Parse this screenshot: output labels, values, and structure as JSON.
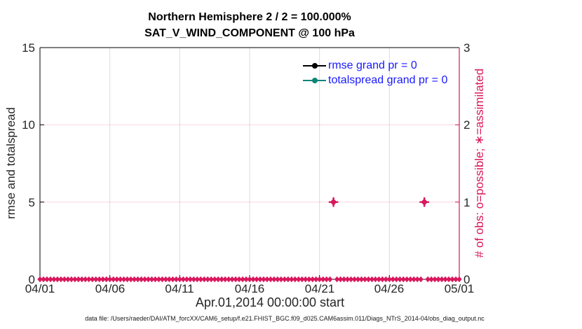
{
  "titles": {
    "line1": "Northern Hemisphere 2 / 2 = 100.000%",
    "line2": "SAT_V_WIND_COMPONENT @ 100 hPa"
  },
  "axes": {
    "x": {
      "label": "Apr.01,2014 00:00:00 start",
      "tick_labels": [
        "04/01",
        "04/06",
        "04/11",
        "04/16",
        "04/21",
        "04/26",
        "05/01"
      ]
    },
    "y_left": {
      "label": "rmse and totalspread",
      "tick_labels": [
        "0",
        "5",
        "10",
        "15"
      ],
      "color": "#262626"
    },
    "y_right": {
      "label": "# of obs: o=possible; ∗=assimilated",
      "tick_labels": [
        "0",
        "1",
        "2",
        "3"
      ],
      "color": "#d9175c"
    }
  },
  "legend": {
    "text_color": "#1a1aff",
    "items": [
      {
        "label": "rmse grand pr = 0",
        "color": "#000000"
      },
      {
        "label": "totalspread grand pr = 0",
        "color": "#0e8577"
      }
    ]
  },
  "caption": "data file: /Users/raeder/DAI/ATM_forcXX/CAM6_setup/f.e21.FHIST_BGC.f09_d025.CAM6assim.011/Diags_NTrS_2014-04/obs_diag_output.nc",
  "chart_data": {
    "type": "scatter",
    "title": "Northern Hemisphere 2 / 2 = 100.000%",
    "subtitle": "SAT_V_WIND_COMPONENT @ 100 hPa",
    "xlabel": "Apr.01,2014 00:00:00 start",
    "ylabel_left": "rmse and totalspread",
    "ylabel_right": "# of obs: o=possible; ∗=assimilated",
    "x_axis": {
      "unit": "days since 2014-04-01 00:00",
      "min": 0,
      "max": 30,
      "tick_days": [
        0,
        5,
        10,
        15,
        20,
        25,
        30
      ],
      "tick_labels": [
        "04/01",
        "04/06",
        "04/11",
        "04/16",
        "04/21",
        "04/26",
        "05/01"
      ]
    },
    "y_left_axis": {
      "min": 0,
      "max": 15,
      "ticks": [
        0,
        5,
        10,
        15
      ]
    },
    "y_right_axis": {
      "min": 0,
      "max": 3,
      "ticks": [
        0,
        1,
        2,
        3
      ]
    },
    "grid": {
      "vertical_color": "#dcdcdc",
      "vertical_at_days": [
        5,
        10,
        15,
        20,
        25
      ],
      "horizontal_color": "rgba(217,23,92,0.16)",
      "horizontal_at_right_values": [
        1,
        2
      ]
    },
    "series": [
      {
        "name": "rmse grand pr = 0",
        "axis": "left",
        "color": "#000000",
        "marker": "filled-circle",
        "points": []
      },
      {
        "name": "totalspread grand pr = 0",
        "axis": "left",
        "color": "#0e8577",
        "marker": "filled-circle",
        "points": []
      },
      {
        "name": "# of obs (o=possible, ∗=assimilated)",
        "axis": "right",
        "color": "#d9175c",
        "marker": "diamond-star",
        "sampling": {
          "start_day": 0,
          "end_day": 30,
          "step_days": 0.25,
          "num_points": 121
        },
        "default_count": 0,
        "nonzero_points": [
          {
            "day": 21.0,
            "date": "2014-04-22 00:00",
            "count": 1
          },
          {
            "day": 27.5,
            "date": "2014-04-28 12:00",
            "count": 1
          }
        ]
      }
    ],
    "legend_position": "upper right inside"
  }
}
